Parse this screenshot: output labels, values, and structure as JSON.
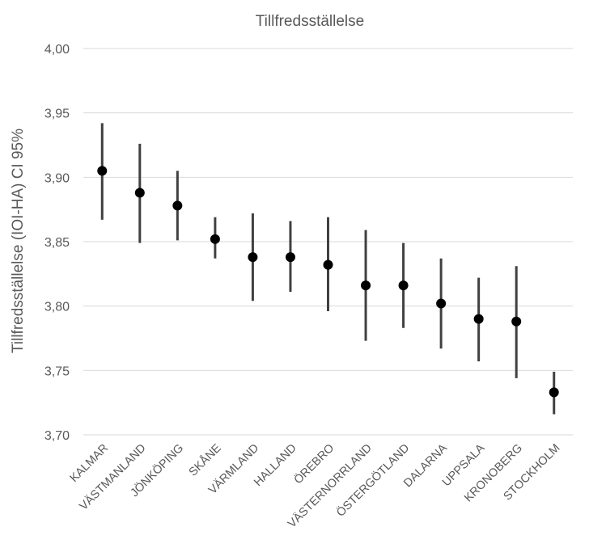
{
  "chart_data": {
    "type": "scatter",
    "title": "Tillfredsställelse",
    "xlabel": "",
    "ylabel": "Tillfredsställelse (IOI-HA) CI 95%",
    "ylim": [
      3.7,
      4.0
    ],
    "yticks": [
      "3,70",
      "3,75",
      "3,80",
      "3,85",
      "3,90",
      "3,95",
      "4,00"
    ],
    "grid": true,
    "legend": "none",
    "categories": [
      "KALMAR",
      "VÄSTMANLAND",
      "JÖNKÖPING",
      "SKÅNE",
      "VÄRMLAND",
      "HALLAND",
      "ÖREBRO",
      "VÄSTERNORRLAND",
      "ÖSTERGÖTLAND",
      "DALARNA",
      "UPPSALA",
      "KRONOBERG",
      "STOCKHOLM"
    ],
    "series": [
      {
        "values": [
          3.905,
          3.888,
          3.878,
          3.852,
          3.838,
          3.838,
          3.832,
          3.816,
          3.816,
          3.802,
          3.79,
          3.788,
          3.733
        ],
        "lower": [
          3.867,
          3.849,
          3.851,
          3.837,
          3.804,
          3.811,
          3.796,
          3.773,
          3.783,
          3.767,
          3.757,
          3.744,
          3.716
        ],
        "upper": [
          3.942,
          3.926,
          3.905,
          3.869,
          3.872,
          3.866,
          3.869,
          3.859,
          3.849,
          3.837,
          3.822,
          3.831,
          3.749
        ]
      }
    ],
    "colors": {
      "marker": "#000000",
      "errorbar": "#404040",
      "grid": "#d9d9d9",
      "text": "#595959"
    }
  }
}
